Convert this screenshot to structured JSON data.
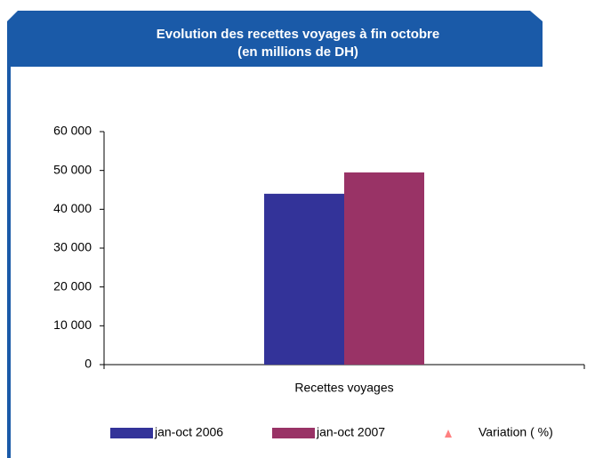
{
  "chart_data": {
    "type": "bar",
    "title": "Evolution des recettes voyages à fin octobre",
    "subtitle": "(en millions de DH)",
    "categories": [
      "Recettes voyages"
    ],
    "series": [
      {
        "name": "jan-oct 2006",
        "color": "#333399",
        "values": [
          44000
        ]
      },
      {
        "name": "jan-oct 2007",
        "color": "#993366",
        "values": [
          49500
        ]
      },
      {
        "name": "Variation ( %)",
        "color": "#ff8080",
        "marker": "triangle",
        "values": [
          null
        ]
      }
    ],
    "ylim": [
      0,
      60000
    ],
    "yticks": [
      0,
      {
        "value": 10000,
        "label": "10 000"
      },
      {
        "value": 20000,
        "label": "20 000"
      },
      {
        "value": 30000,
        "label": "30 000"
      },
      {
        "value": 40000,
        "label": "40 000"
      },
      {
        "value": 50000,
        "label": "50 000"
      },
      {
        "value": 60000,
        "label": "60 000"
      }
    ],
    "grid": false,
    "legend": "bottom"
  }
}
